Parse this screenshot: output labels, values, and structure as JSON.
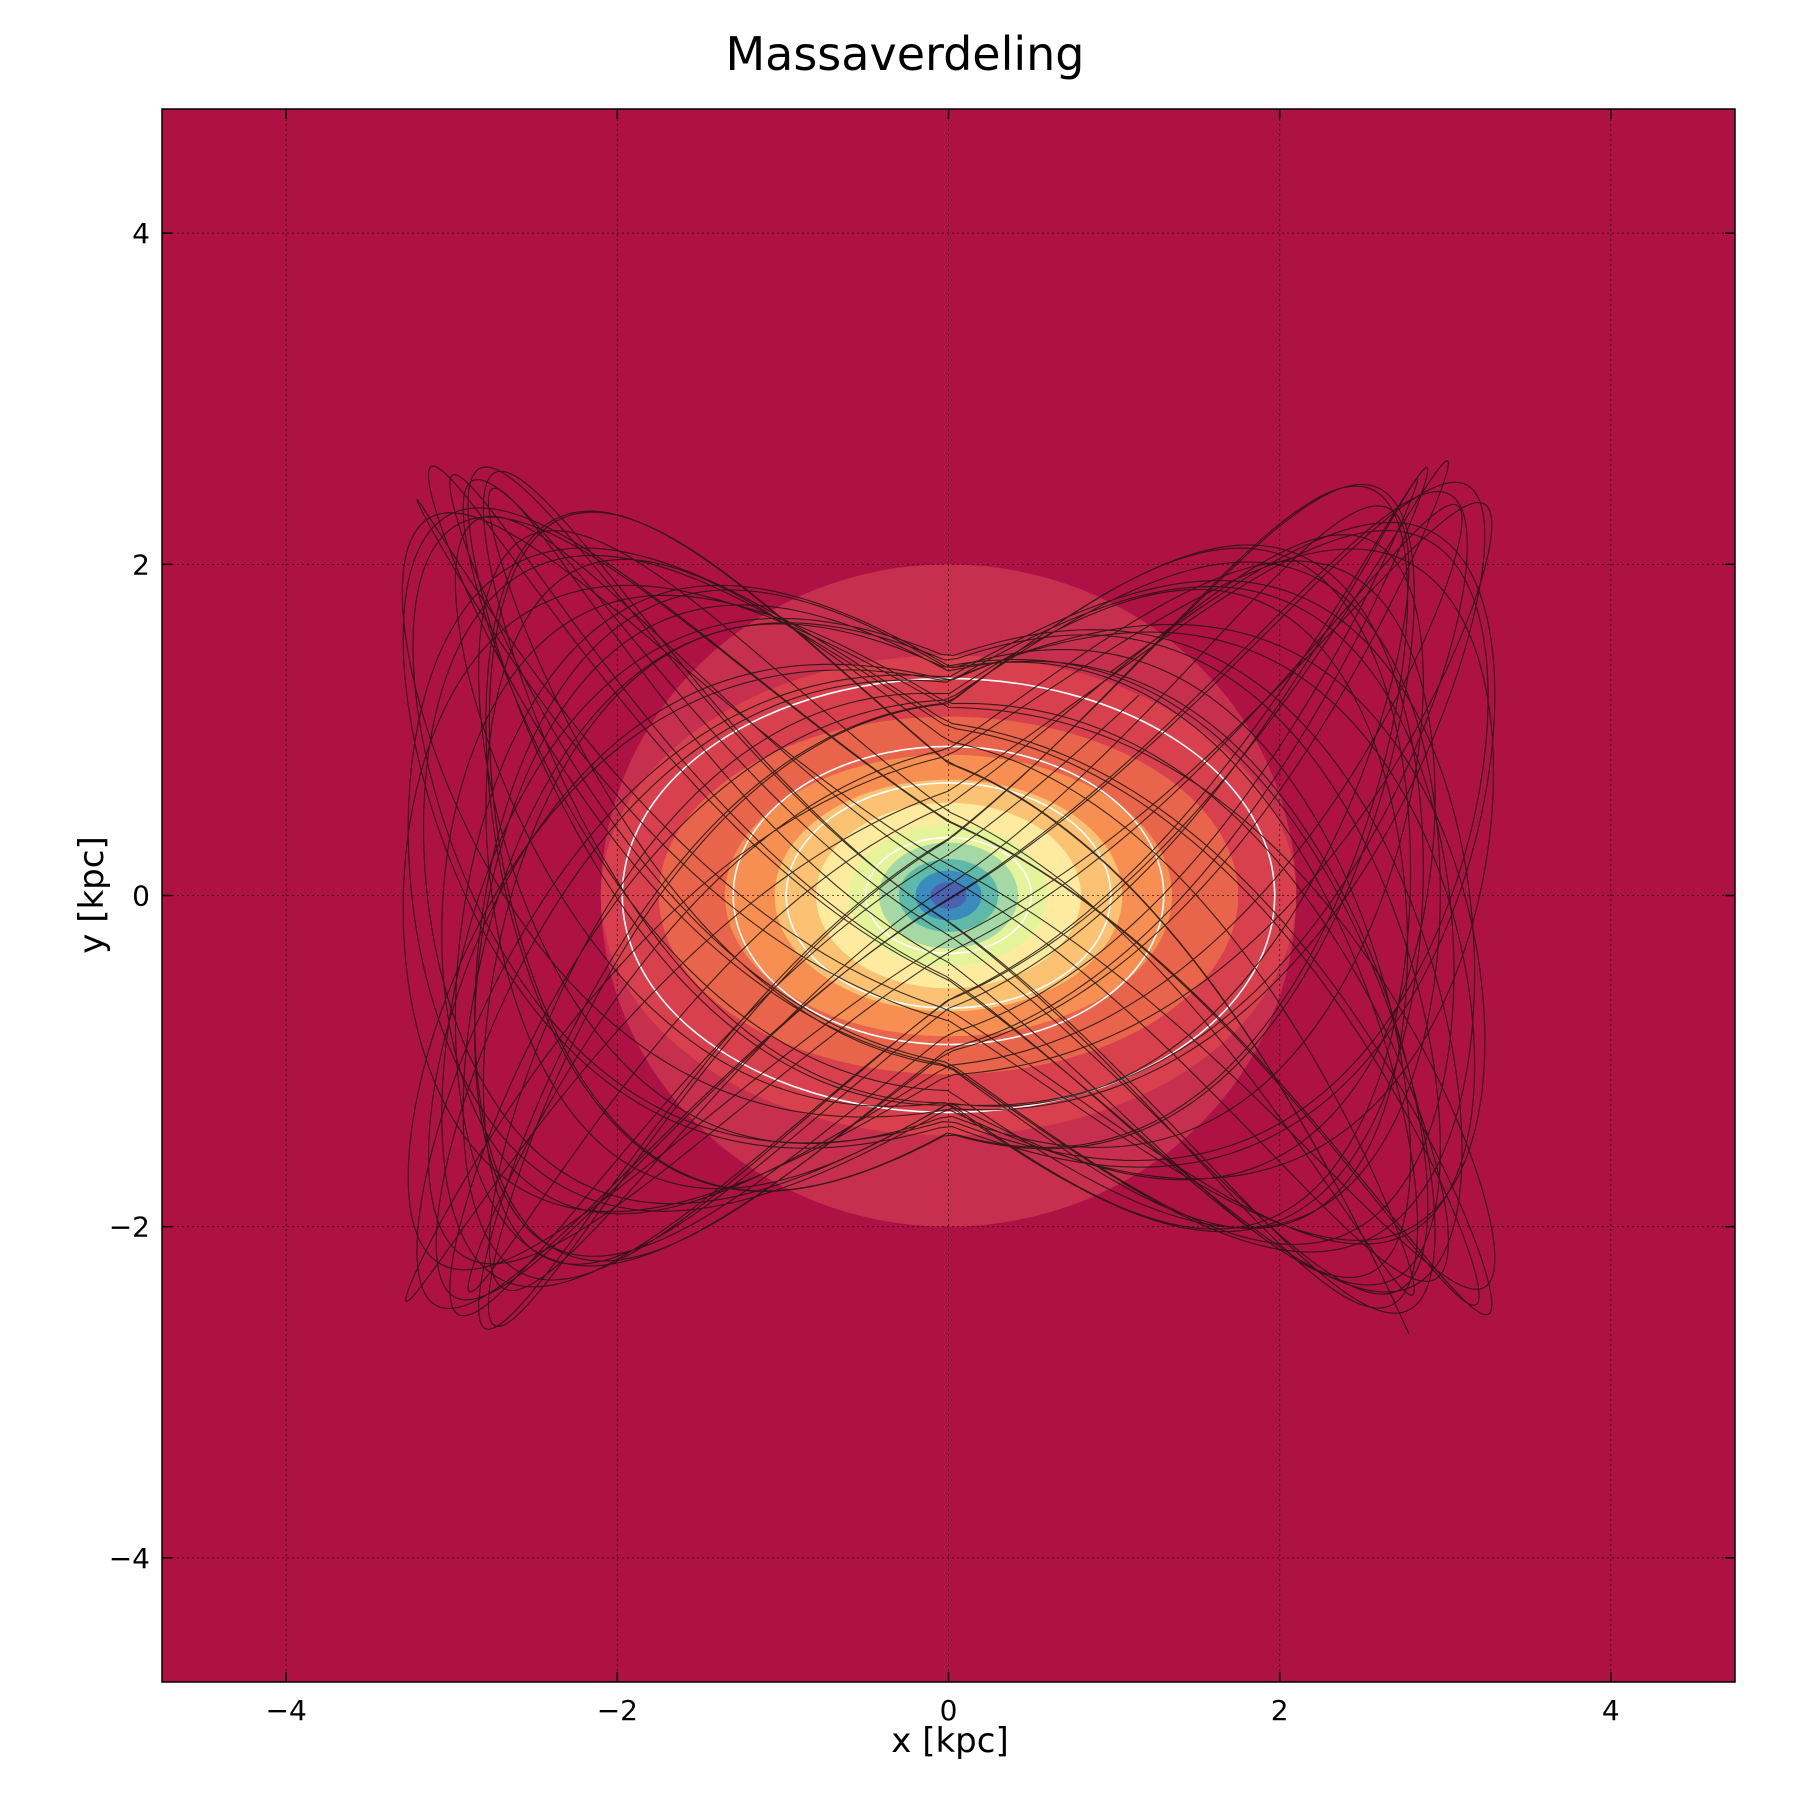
{
  "chart_data": {
    "type": "contour",
    "title": "Massaverdeling",
    "xlabel": "x [kpc]",
    "ylabel": "y [kpc]",
    "xlim": [
      -4.75,
      4.75
    ],
    "ylim": [
      -4.75,
      4.75
    ],
    "xticks": [
      -4,
      -2,
      0,
      2,
      4
    ],
    "yticks": [
      -4,
      -2,
      0,
      2,
      4
    ],
    "xtick_labels": [
      "−4",
      "−2",
      "0",
      "2",
      "4"
    ],
    "ytick_labels": [
      "−4",
      "−2",
      "0",
      "2",
      "4"
    ],
    "grid": true,
    "colormap": "Spectral",
    "background_color": "#ae1144",
    "filled_contours": [
      {
        "semi_axes": [
          2.1,
          2.0
        ],
        "color": "#c72f4e"
      },
      {
        "semi_axes": [
          2.1,
          1.45
        ],
        "color": "#d9404e"
      },
      {
        "semi_axes": [
          1.75,
          1.08
        ],
        "color": "#e8644a"
      },
      {
        "semi_axes": [
          1.35,
          0.85
        ],
        "color": "#f78f53"
      },
      {
        "semi_axes": [
          1.05,
          0.7
        ],
        "color": "#fbc274"
      },
      {
        "semi_axes": [
          0.8,
          0.56
        ],
        "color": "#feeba0"
      },
      {
        "semi_axes": [
          0.6,
          0.43
        ],
        "color": "#e5f49b"
      },
      {
        "semi_axes": [
          0.42,
          0.32
        ],
        "color": "#a4d8a4"
      },
      {
        "semi_axes": [
          0.3,
          0.22
        ],
        "color": "#5fb9a9"
      },
      {
        "semi_axes": [
          0.2,
          0.15
        ],
        "color": "#3a8cbf"
      },
      {
        "semi_axes": [
          0.11,
          0.08
        ],
        "color": "#4a62b0"
      }
    ],
    "line_contours": {
      "color": "#ffffff",
      "semi_axes": [
        [
          1.97,
          1.31
        ],
        [
          1.3,
          0.9
        ],
        [
          0.98,
          0.68
        ],
        [
          0.5,
          0.35
        ]
      ]
    },
    "orbit": {
      "color": "#1c1410",
      "x_amplitude": 3.3,
      "y_amplitude": 2.65,
      "approx_extent_x": [
        -3.4,
        3.4
      ],
      "approx_extent_y": [
        -2.7,
        2.7
      ]
    }
  }
}
